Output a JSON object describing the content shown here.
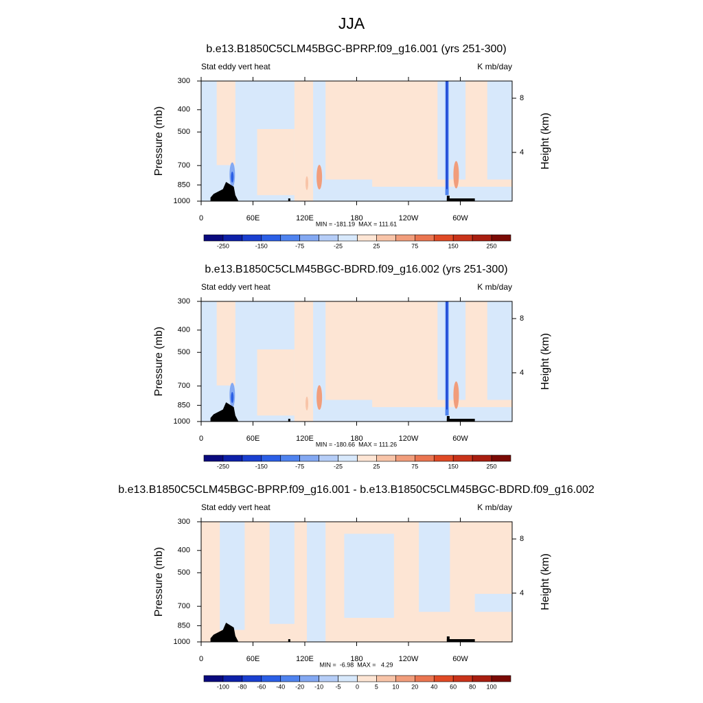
{
  "title": "JJA",
  "chart_data": [
    {
      "type": "contour",
      "title": "b.e13.B1850C5CLM45BGC-BPRP.f09_g16.001 (yrs 251-300)",
      "subtitle_left": "Stat eddy vert heat",
      "subtitle_right": "K mb/day",
      "ylabel": "Pressure (mb)",
      "y2label": "Height (km)",
      "xlim": [
        0,
        360
      ],
      "xticks": [
        0,
        {
          "value": 60,
          "label": "60E"
        },
        {
          "value": 120,
          "label": "120E"
        },
        180,
        {
          "value": 240,
          "label": "120W"
        },
        {
          "value": 300,
          "label": "60W"
        }
      ],
      "ylim": [
        1000,
        300
      ],
      "yscale": "log",
      "yticks": [
        300,
        400,
        500,
        700,
        850,
        1000
      ],
      "y2lim": [
        0.4,
        9.27
      ],
      "y2ticks": [
        4,
        8
      ],
      "stats": "MIN = -181.19  MAX = 111.61",
      "colorbar": {
        "levels": [
          -250,
          -150,
          -75,
          -25,
          25,
          75,
          150,
          250
        ],
        "colors": [
          "#0a0a7d",
          "#0d20a8",
          "#1a3fd0",
          "#2b5fe6",
          "#4f83ef",
          "#83a8f2",
          "#b5cdf7",
          "#d7e8fb",
          "#fde5d4",
          "#f8c4a8",
          "#f19d7b",
          "#ea7550",
          "#e04a25",
          "#c9331a",
          "#a81e10",
          "#7a0a05"
        ]
      }
    },
    {
      "type": "contour",
      "title": "b.e13.B1850C5CLM45BGC-BDRD.f09_g16.002 (yrs 251-300)",
      "subtitle_left": "Stat eddy vert heat",
      "subtitle_right": "K mb/day",
      "ylabel": "Pressure (mb)",
      "y2label": "Height (km)",
      "xlim": [
        0,
        360
      ],
      "xticks": [
        0,
        {
          "value": 60,
          "label": "60E"
        },
        {
          "value": 120,
          "label": "120E"
        },
        180,
        {
          "value": 240,
          "label": "120W"
        },
        {
          "value": 300,
          "label": "60W"
        }
      ],
      "ylim": [
        1000,
        300
      ],
      "yscale": "log",
      "yticks": [
        300,
        400,
        500,
        700,
        850,
        1000
      ],
      "y2lim": [
        0.4,
        9.27
      ],
      "y2ticks": [
        4,
        8
      ],
      "stats": "MIN = -180.66  MAX = 111.26",
      "colorbar": {
        "levels": [
          -250,
          -150,
          -75,
          -25,
          25,
          75,
          150,
          250
        ],
        "colors": [
          "#0a0a7d",
          "#0d20a8",
          "#1a3fd0",
          "#2b5fe6",
          "#4f83ef",
          "#83a8f2",
          "#b5cdf7",
          "#d7e8fb",
          "#fde5d4",
          "#f8c4a8",
          "#f19d7b",
          "#ea7550",
          "#e04a25",
          "#c9331a",
          "#a81e10",
          "#7a0a05"
        ]
      }
    },
    {
      "type": "contour",
      "title": "b.e13.B1850C5CLM45BGC-BPRP.f09_g16.001 - b.e13.B1850C5CLM45BGC-BDRD.f09_g16.002",
      "subtitle_left": "Stat eddy vert heat",
      "subtitle_right": "K mb/day",
      "ylabel": "Pressure (mb)",
      "y2label": "Height (km)",
      "xlim": [
        0,
        360
      ],
      "xticks": [
        0,
        {
          "value": 60,
          "label": "60E"
        },
        {
          "value": 120,
          "label": "120E"
        },
        180,
        {
          "value": 240,
          "label": "120W"
        },
        {
          "value": 300,
          "label": "60W"
        }
      ],
      "ylim": [
        1000,
        300
      ],
      "yscale": "log",
      "yticks": [
        300,
        400,
        500,
        700,
        850,
        1000
      ],
      "y2lim": [
        0.4,
        9.27
      ],
      "y2ticks": [
        4,
        8
      ],
      "stats": "MIN =  -6.98  MAX =   4.29",
      "colorbar": {
        "levels": [
          -100,
          -80,
          -60,
          -40,
          -20,
          -10,
          -5,
          0,
          5,
          10,
          20,
          40,
          60,
          80,
          100
        ],
        "colors": [
          "#0a0a7d",
          "#0d20a8",
          "#1a3fd0",
          "#2b5fe6",
          "#4f83ef",
          "#83a8f2",
          "#b5cdf7",
          "#d7e8fb",
          "#fde5d4",
          "#f8c4a8",
          "#f19d7b",
          "#ea7550",
          "#e04a25",
          "#c9331a",
          "#a81e10",
          "#7a0a05"
        ]
      }
    }
  ]
}
